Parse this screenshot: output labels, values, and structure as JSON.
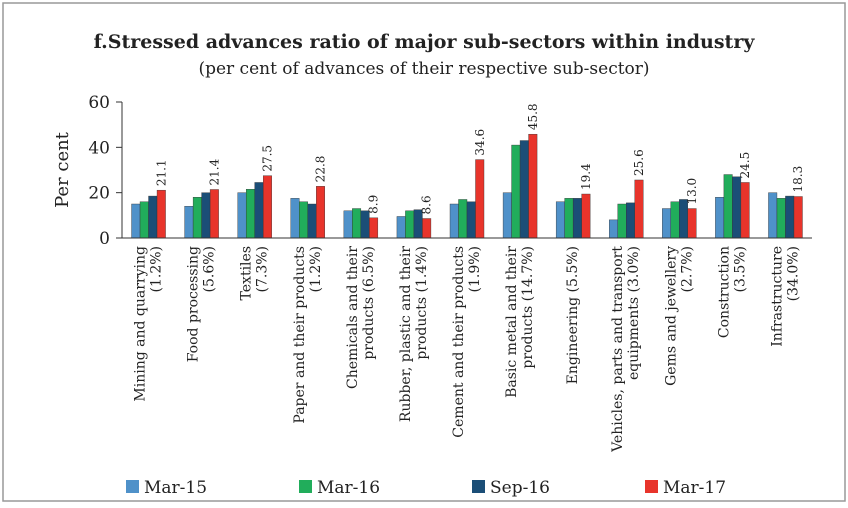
{
  "chart_data": {
    "type": "bar",
    "title": "f.Stressed advances ratio of major sub-sectors within industry",
    "subtitle": "(per cent of advances of their respective sub-sector)",
    "y_label": "Per cent",
    "categories": [
      [
        "Mining and quarrying",
        "(1.2%)"
      ],
      [
        "Food processing",
        "(5.6%)"
      ],
      [
        "Textiles",
        "(7.3%)"
      ],
      [
        "Paper and their products",
        "(1.2%)"
      ],
      [
        "Chemicals and their",
        "products (6.5%)"
      ],
      [
        "Rubber, plastic and their",
        "products (1.4%)"
      ],
      [
        "Cement  and their products",
        "(1.9%)"
      ],
      [
        "Basic metal and their",
        "products (14.7%)"
      ],
      [
        "Engineering (5.5%)"
      ],
      [
        "Vehicles, parts and transport",
        "equipments (3.0%)"
      ],
      [
        "Gems and jewellery",
        "(2.7%)"
      ],
      [
        "Construction",
        "(3.5%)"
      ],
      [
        "Infrastructure",
        "(34.0%)"
      ]
    ],
    "series": [
      {
        "name": "Mar-15",
        "color": "#4f91c9",
        "values": [
          15,
          14,
          20,
          17.5,
          12,
          9.5,
          15,
          20,
          16,
          8,
          13,
          18,
          20
        ]
      },
      {
        "name": "Mar-16",
        "color": "#21ad5b",
        "values": [
          16,
          18,
          21.5,
          16,
          13,
          12,
          17,
          41,
          17.5,
          15,
          16,
          28,
          17.5
        ]
      },
      {
        "name": "Sep-16",
        "color": "#1b4e77",
        "values": [
          18.5,
          20,
          24.5,
          15,
          12,
          12.5,
          16,
          43,
          17.5,
          15.5,
          17,
          27,
          18.5
        ]
      },
      {
        "name": "Mar-17",
        "color": "#e8342b",
        "values": [
          21.1,
          21.4,
          27.5,
          22.8,
          8.9,
          8.6,
          34.6,
          45.8,
          19.4,
          25.6,
          13.0,
          24.5,
          18.3
        ],
        "value_labels": [
          "21.1",
          "21.4",
          "27.5",
          "22.8",
          "8.9",
          "8.6",
          "34.6",
          "45.8",
          "19.4",
          "25.6",
          "13.0",
          "24.5",
          "18.3"
        ]
      }
    ],
    "ylim": [
      0,
      60
    ],
    "yticks": [
      0,
      20,
      40,
      60
    ],
    "grid": false,
    "legend": "bottom"
  }
}
